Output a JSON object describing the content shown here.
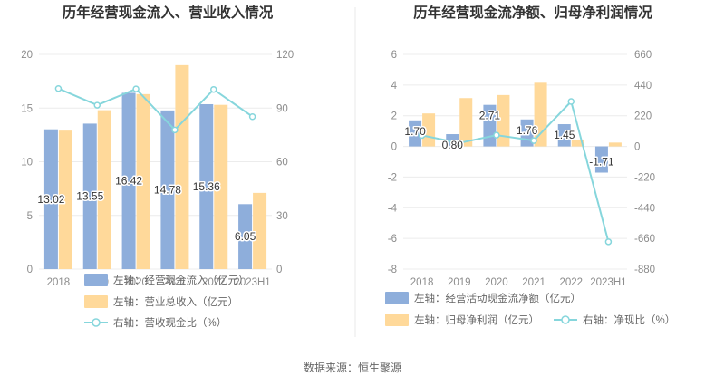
{
  "source_text": "数据来源：恒生聚源",
  "colors": {
    "blue": "#8eaedb",
    "orange": "#ffd99a",
    "teal": "#86d6dc",
    "grid": "#ececec",
    "divider": "#e8e8e8"
  },
  "chart_data": [
    {
      "type": "bar",
      "title": "历年经营现金流入、营业收入情况",
      "categories": [
        "2018",
        "2019",
        "2020",
        "2021",
        "2022",
        "2023H1"
      ],
      "left_axis": {
        "ylim": [
          0,
          20
        ],
        "ticks": [
          0,
          5,
          10,
          15,
          20
        ]
      },
      "right_axis": {
        "ylim": [
          0,
          120
        ],
        "ticks": [
          0,
          30,
          60,
          90,
          120
        ]
      },
      "series": [
        {
          "name": "左轴：经营现金流入（亿元）",
          "type": "bar",
          "axis": "left",
          "color": "#8eaedb",
          "values": [
            13.02,
            13.55,
            16.42,
            14.78,
            15.36,
            6.05
          ],
          "show_labels": true
        },
        {
          "name": "左轴：营业总收入（亿元）",
          "type": "bar",
          "axis": "left",
          "color": "#ffd99a",
          "values": [
            12.9,
            14.8,
            16.3,
            19.0,
            15.3,
            7.1
          ],
          "show_labels": false
        },
        {
          "name": "右轴：营收现金比（%）",
          "type": "line",
          "axis": "right",
          "color": "#86d6dc",
          "values": [
            100.9,
            91.6,
            100.7,
            77.8,
            100.4,
            85.2
          ],
          "show_labels": false
        }
      ]
    },
    {
      "type": "bar",
      "title": "历年经营现金流净额、归母净利润情况",
      "categories": [
        "2018",
        "2019",
        "2020",
        "2021",
        "2022",
        "2023H1"
      ],
      "left_axis": {
        "ylim": [
          -8,
          6
        ],
        "ticks": [
          -8,
          -6,
          -4,
          -2,
          0,
          2,
          4,
          6
        ]
      },
      "right_axis": {
        "ylim": [
          -880,
          660
        ],
        "ticks": [
          -880,
          -660,
          -440,
          -220,
          0,
          220,
          440,
          660
        ]
      },
      "series": [
        {
          "name": "左轴：经营活动现金流净额（亿元）",
          "type": "bar",
          "axis": "left",
          "color": "#8eaedb",
          "values": [
            1.7,
            0.8,
            2.71,
            1.76,
            1.45,
            -1.71
          ],
          "show_labels": true
        },
        {
          "name": "左轴：归母净利润（亿元）",
          "type": "bar",
          "axis": "left",
          "color": "#ffd99a",
          "values": [
            2.15,
            3.15,
            3.35,
            4.15,
            0.45,
            0.25
          ],
          "show_labels": false
        },
        {
          "name": "右轴：净现比（%）",
          "type": "line",
          "axis": "right",
          "color": "#86d6dc",
          "values": [
            79,
            25,
            81,
            42,
            322,
            -684
          ],
          "show_labels": false
        }
      ]
    }
  ]
}
